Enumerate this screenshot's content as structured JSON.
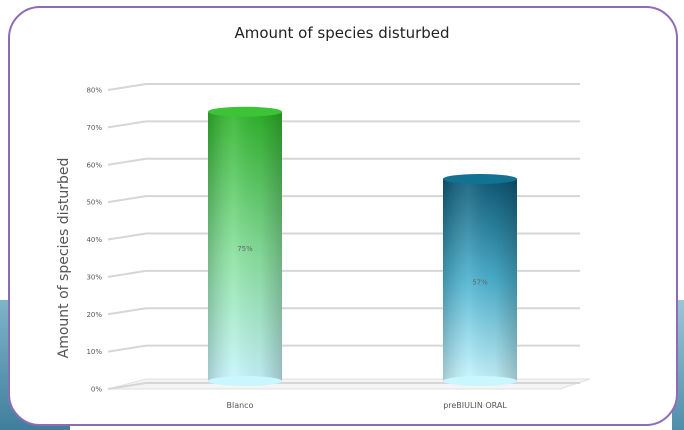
{
  "chart_data": {
    "type": "bar",
    "title": "Amount of species disturbed",
    "xlabel": "",
    "ylabel": "Amount of species disturbed",
    "categories": [
      "Blanco",
      "preBIULIN ORAL"
    ],
    "values": [
      75,
      57
    ],
    "data_labels": [
      "75%",
      "57%"
    ],
    "y_ticks": [
      "0%",
      "10%",
      "20%",
      "30%",
      "40%",
      "50%",
      "60%",
      "70%",
      "80%"
    ],
    "ylim": [
      0,
      80
    ],
    "grid": true,
    "legend": "none",
    "style": "3d-cylinder",
    "colors": {
      "Blanco": [
        "#2fb52a",
        "#c9f6ff"
      ],
      "preBIULIN ORAL": [
        "#0e5a78",
        "#c9f6ff"
      ],
      "frame": "#8f6bb6"
    }
  }
}
